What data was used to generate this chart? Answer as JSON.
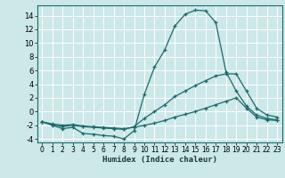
{
  "xlabel": "Humidex (Indice chaleur)",
  "bg_color": "#cce8e8",
  "grid_color": "#ffffff",
  "line_color": "#1a6b6b",
  "xlim": [
    -0.5,
    23.5
  ],
  "ylim": [
    -4.5,
    15.5
  ],
  "xticks": [
    0,
    1,
    2,
    3,
    4,
    5,
    6,
    7,
    8,
    9,
    10,
    11,
    12,
    13,
    14,
    15,
    16,
    17,
    18,
    19,
    20,
    21,
    22,
    23
  ],
  "yticks": [
    -4,
    -2,
    0,
    2,
    4,
    6,
    8,
    10,
    12,
    14
  ],
  "curve1_x": [
    0,
    1,
    2,
    3,
    4,
    5,
    6,
    7,
    8,
    9,
    10,
    11,
    12,
    13,
    14,
    15,
    16,
    17,
    18,
    19,
    20,
    21,
    22,
    23
  ],
  "curve1_y": [
    -1.5,
    -2.0,
    -2.5,
    -2.3,
    -3.2,
    -3.3,
    -3.5,
    -3.6,
    -4.0,
    -2.8,
    2.5,
    6.5,
    9.0,
    12.5,
    14.2,
    14.8,
    14.7,
    13.0,
    5.8,
    3.0,
    0.8,
    -0.5,
    -1.0,
    -1.2
  ],
  "curve2_x": [
    0,
    1,
    2,
    3,
    4,
    5,
    6,
    7,
    8,
    9,
    10,
    11,
    12,
    13,
    14,
    15,
    16,
    17,
    18,
    19,
    20,
    21,
    22,
    23
  ],
  "curve2_y": [
    -1.5,
    -1.9,
    -2.2,
    -2.0,
    -2.2,
    -2.3,
    -2.4,
    -2.5,
    -2.6,
    -2.2,
    -1.0,
    0.0,
    1.0,
    2.2,
    3.0,
    3.8,
    4.5,
    5.2,
    5.5,
    5.5,
    3.0,
    0.5,
    -0.5,
    -0.8
  ],
  "curve3_x": [
    0,
    1,
    2,
    3,
    4,
    5,
    6,
    7,
    8,
    9,
    10,
    11,
    12,
    13,
    14,
    15,
    16,
    17,
    18,
    19,
    20,
    21,
    22,
    23
  ],
  "curve3_y": [
    -1.5,
    -1.8,
    -2.0,
    -1.9,
    -2.1,
    -2.2,
    -2.3,
    -2.4,
    -2.5,
    -2.3,
    -2.0,
    -1.7,
    -1.3,
    -0.8,
    -0.4,
    0.0,
    0.5,
    1.0,
    1.5,
    2.0,
    0.5,
    -0.8,
    -1.2,
    -1.3
  ]
}
